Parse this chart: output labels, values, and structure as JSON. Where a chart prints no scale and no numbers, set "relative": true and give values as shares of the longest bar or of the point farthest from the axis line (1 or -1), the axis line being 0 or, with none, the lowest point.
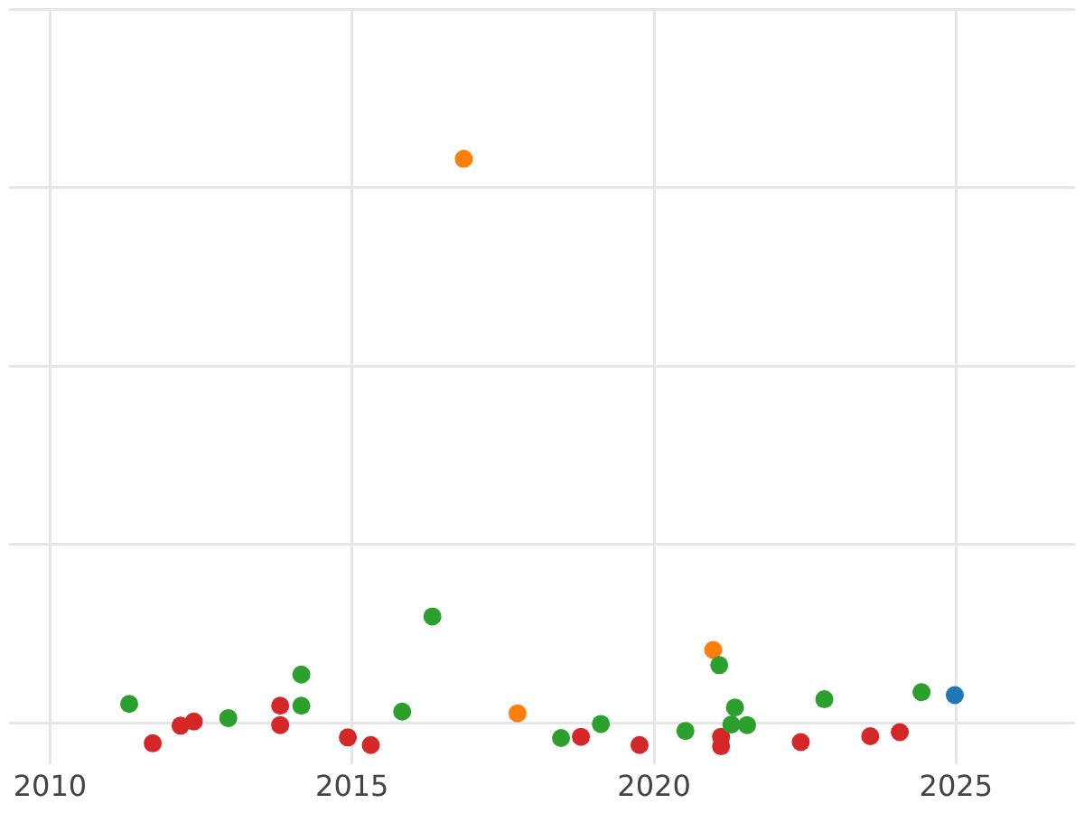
{
  "chart_data": {
    "type": "scatter",
    "relative": true,
    "xlim": [
      2009.32,
      2026.97
    ],
    "xticks": [
      2010,
      2015,
      2020,
      2025
    ],
    "grid": true,
    "legend": false,
    "marker": "circle",
    "series": [
      {
        "color": "#2ca02c",
        "x": [
          2011.31,
          2012.95,
          2014.16,
          2014.16,
          2015.83,
          2016.33,
          2018.46,
          2019.12,
          2020.52,
          2021.08,
          2021.34,
          2021.28,
          2021.54,
          2022.82,
          2024.43
        ],
        "values": [
          0.072,
          0.048,
          0.122,
          0.069,
          0.059,
          0.221,
          0.014,
          0.038,
          0.026,
          0.138,
          0.066,
          0.037,
          0.036,
          0.08,
          0.092
        ]
      },
      {
        "color": "#d62728",
        "x": [
          2011.7,
          2012.16,
          2012.38,
          2013.81,
          2013.81,
          2014.93,
          2015.31,
          2018.79,
          2019.76,
          2021.11,
          2021.11,
          2022.43,
          2023.58,
          2024.07
        ],
        "values": [
          0.005,
          0.035,
          0.042,
          0.069,
          0.036,
          0.015,
          0.002,
          0.016,
          0.002,
          0.016,
          0,
          0.007,
          0.017,
          0.024
        ]
      },
      {
        "color": "#ff7f0e",
        "x": [
          2016.85,
          2017.74,
          2020.98
        ],
        "values": [
          1,
          0.056,
          0.164
        ]
      },
      {
        "color": "#1f77b4",
        "x": [
          2024.98
        ],
        "values": [
          0.087
        ]
      }
    ]
  }
}
